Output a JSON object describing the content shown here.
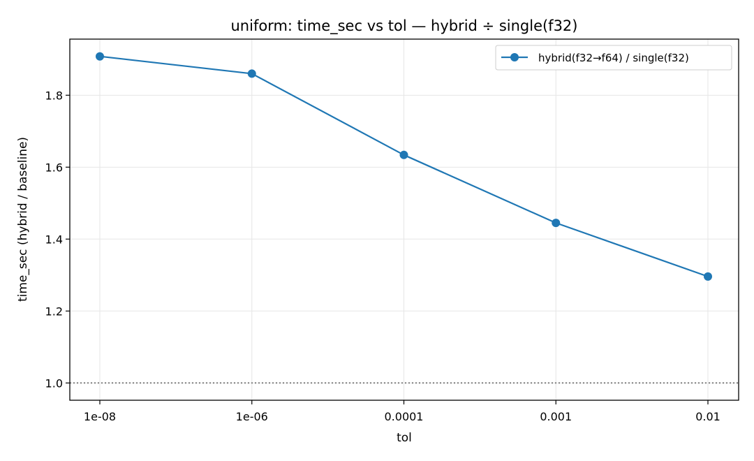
{
  "chart_data": {
    "type": "line",
    "title": "uniform: time_sec vs tol — hybrid ÷ single(f32)",
    "xlabel": "tol",
    "ylabel": "time_sec (hybrid / baseline)",
    "categories": [
      "1e-08",
      "1e-06",
      "0.0001",
      "0.001",
      "0.01"
    ],
    "series": [
      {
        "name": "hybrid(f32→f64) / single(f32)",
        "values": [
          1.908,
          1.86,
          1.634,
          1.445,
          1.296
        ],
        "color": "#1f77b4"
      }
    ],
    "ylim": [
      0.952,
      1.956
    ],
    "yticks": [
      1.0,
      1.2,
      1.4,
      1.6,
      1.8
    ],
    "ytick_labels": [
      "1.0",
      "1.2",
      "1.4",
      "1.6",
      "1.8"
    ],
    "reference_line": {
      "y": 1.0,
      "style": "dotted",
      "color": "#808080"
    },
    "grid": true,
    "legend_position": "top-right"
  }
}
